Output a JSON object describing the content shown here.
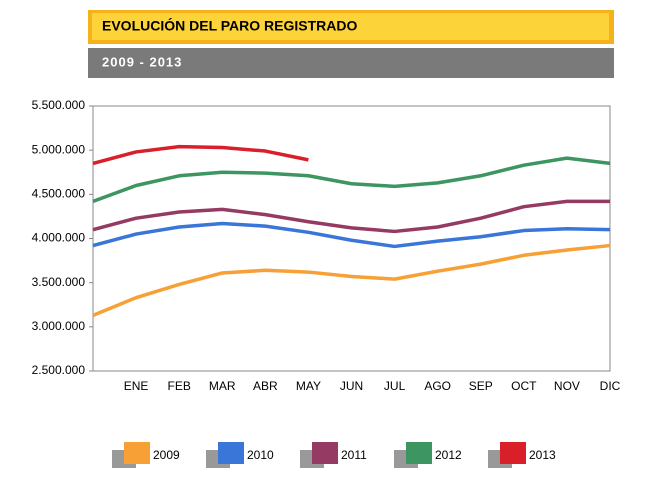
{
  "chart_data": {
    "type": "line",
    "title": "EVOLUCIÓN DEL PARO REGISTRADO",
    "subtitle": "2009 - 2013",
    "categories": [
      null,
      "ENE",
      "FEB",
      "MAR",
      "ABR",
      "MAY",
      "JUN",
      "JUL",
      "AGO",
      "SEP",
      "OCT",
      "NOV",
      "DIC"
    ],
    "ylim": [
      2500000,
      5500000
    ],
    "yticks": [
      {
        "value": 2500000,
        "label": "2.500.000"
      },
      {
        "value": 3000000,
        "label": "3.000.000"
      },
      {
        "value": 3500000,
        "label": "3.500.000"
      },
      {
        "value": 4000000,
        "label": "4.000.000"
      },
      {
        "value": 4500000,
        "label": "4.500.000"
      },
      {
        "value": 5000000,
        "label": "5.000.000"
      },
      {
        "value": 5500000,
        "label": "5.500.000"
      }
    ],
    "grid": false,
    "series": [
      {
        "name": "2009",
        "color": "#f7a035",
        "values": [
          3130000,
          3330000,
          3480000,
          3610000,
          3640000,
          3620000,
          3570000,
          3540000,
          3630000,
          3710000,
          3810000,
          3870000,
          3920000
        ]
      },
      {
        "name": "2010",
        "color": "#3a75d8",
        "values": [
          3920000,
          4050000,
          4130000,
          4170000,
          4140000,
          4070000,
          3980000,
          3910000,
          3970000,
          4020000,
          4090000,
          4110000,
          4100000
        ]
      },
      {
        "name": "2011",
        "color": "#953a63",
        "values": [
          4100000,
          4230000,
          4300000,
          4330000,
          4270000,
          4190000,
          4120000,
          4080000,
          4130000,
          4230000,
          4360000,
          4420000,
          4420000
        ]
      },
      {
        "name": "2012",
        "color": "#3d9561",
        "values": [
          4420000,
          4600000,
          4710000,
          4750000,
          4740000,
          4710000,
          4620000,
          4590000,
          4630000,
          4710000,
          4830000,
          4910000,
          4850000
        ]
      },
      {
        "name": "2013",
        "color": "#d9202a",
        "values": [
          4850000,
          4980000,
          5040000,
          5030000,
          4990000,
          4890000,
          null,
          null,
          null,
          null,
          null,
          null,
          null
        ]
      }
    ]
  }
}
